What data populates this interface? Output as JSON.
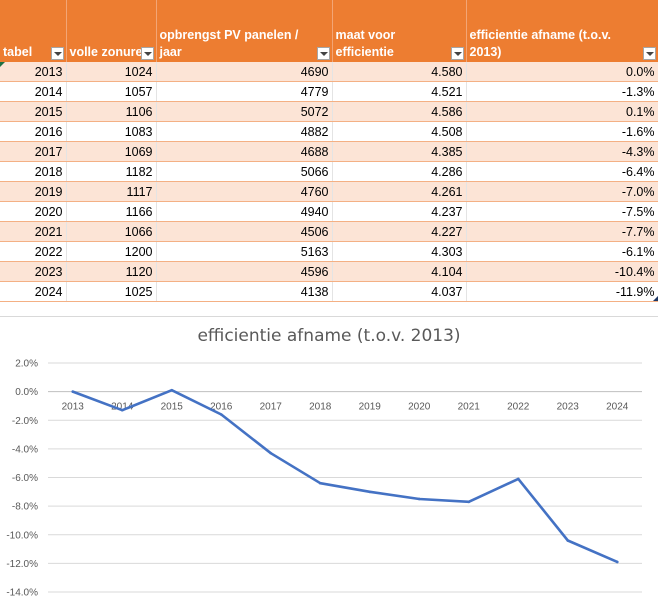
{
  "sheet": {
    "headers": [
      "tabel",
      "volle zonuren",
      "opbrengst PV panelen / jaar",
      "maat voor efficientie",
      "efficientie afname (t.o.v. 2013)"
    ],
    "rows": [
      [
        "2013",
        "1024",
        "4690",
        "4.580",
        "0.0%"
      ],
      [
        "2014",
        "1057",
        "4779",
        "4.521",
        "-1.3%"
      ],
      [
        "2015",
        "1106",
        "5072",
        "4.586",
        "0.1%"
      ],
      [
        "2016",
        "1083",
        "4882",
        "4.508",
        "-1.6%"
      ],
      [
        "2017",
        "1069",
        "4688",
        "4.385",
        "-4.3%"
      ],
      [
        "2018",
        "1182",
        "5066",
        "4.286",
        "-6.4%"
      ],
      [
        "2019",
        "1117",
        "4760",
        "4.261",
        "-7.0%"
      ],
      [
        "2020",
        "1166",
        "4940",
        "4.237",
        "-7.5%"
      ],
      [
        "2021",
        "1066",
        "4506",
        "4.227",
        "-7.7%"
      ],
      [
        "2022",
        "1200",
        "5163",
        "4.303",
        "-6.1%"
      ],
      [
        "2023",
        "1120",
        "4596",
        "4.104",
        "-10.4%"
      ],
      [
        "2024",
        "1025",
        "4138",
        "4.037",
        "-11.9%"
      ]
    ],
    "colors": {
      "header": "#ed7d31",
      "band": "#fce4d6",
      "line": "#4472c4"
    }
  },
  "chart_data": {
    "type": "line",
    "title": "efficientie afname (t.o.v. 2013)",
    "x": [
      "2013",
      "2014",
      "2015",
      "2016",
      "2017",
      "2018",
      "2019",
      "2020",
      "2021",
      "2022",
      "2023",
      "2024"
    ],
    "series": [
      {
        "values": [
          0.0,
          -1.3,
          0.1,
          -1.6,
          -4.3,
          -6.4,
          -7.0,
          -7.5,
          -7.7,
          -6.1,
          -10.4,
          -11.9
        ]
      }
    ],
    "ylim": [
      -14,
      2
    ],
    "yticks": [
      "2.0%",
      "0.0%",
      "-2.0%",
      "-4.0%",
      "-6.0%",
      "-8.0%",
      "-10.0%",
      "-12.0%",
      "-14.0%"
    ],
    "ytick_values": [
      2,
      0,
      -2,
      -4,
      -6,
      -8,
      -10,
      -12,
      -14
    ],
    "grid": true,
    "legend": "none",
    "xaxis_position": "zero-line"
  }
}
